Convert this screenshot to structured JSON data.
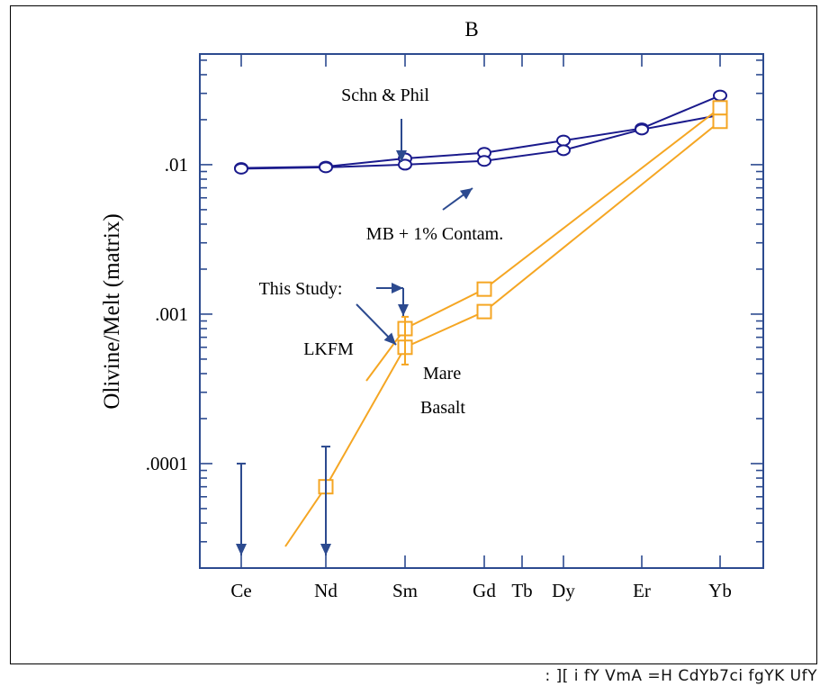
{
  "footer_text": ": ][ i fY VmA =H CdYb7ci fgYK UfY",
  "chart_data": {
    "type": "line",
    "title": "B",
    "xlabel": "",
    "ylabel": "Olivine/Melt (matrix)",
    "y_scale": "log",
    "ylim": [
      2e-05,
      0.055
    ],
    "categories": [
      "Ce",
      "Nd",
      "Sm",
      "Gd",
      "Tb",
      "Dy",
      "Er",
      "Yb"
    ],
    "y_tick_labels": [
      ".0001",
      ".001",
      ".01"
    ],
    "colors": {
      "blue": "#1a1a8c",
      "orange": "#f5a623",
      "arrow": "#2c4a8f"
    },
    "series": [
      {
        "name": "Schn & Phil",
        "color": "#1a1a8c",
        "marker": "circle",
        "x": [
          "Ce",
          "Nd",
          "Sm",
          "Gd",
          "Dy",
          "Er",
          "Yb"
        ],
        "values": [
          0.0095,
          0.0097,
          0.011,
          0.012,
          0.0145,
          0.0175,
          0.029
        ]
      },
      {
        "name": "MB + 1% Contam.",
        "color": "#1a1a8c",
        "marker": "circle",
        "x": [
          "Ce",
          "Nd",
          "Sm",
          "Gd",
          "Dy",
          "Er",
          "Yb"
        ],
        "values": [
          0.0094,
          0.0096,
          0.01,
          0.0106,
          0.0125,
          0.0172,
          0.0215
        ]
      },
      {
        "name": "LKFM",
        "color": "#f5a623",
        "marker": "square",
        "x": [
          "Sm",
          "Gd",
          "Yb"
        ],
        "values": [
          0.0008,
          0.00147,
          0.024
        ]
      },
      {
        "name": "Mare Basalt",
        "color": "#f5a623",
        "marker": "square",
        "x": [
          "Nd",
          "Sm",
          "Gd",
          "Yb"
        ],
        "values": [
          7e-05,
          0.0006,
          0.00104,
          0.0195
        ]
      }
    ],
    "annotations": [
      "Schn & Phil",
      "MB + 1% Contam.",
      "This Study:",
      "LKFM",
      "Mare",
      "Basalt"
    ]
  }
}
